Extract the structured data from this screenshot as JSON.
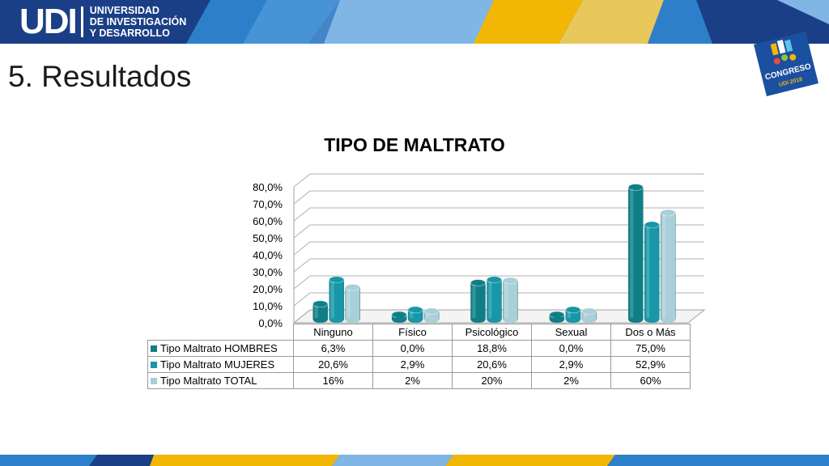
{
  "header": {
    "logo_mark": "UDI",
    "logo_lines": [
      "UNIVERSIDAD",
      "DE INVESTIGACIÓN",
      "Y DESARROLLO"
    ],
    "colors": {
      "navy": "#1b3f86",
      "blue": "#2e7fc9",
      "light_blue": "#7fb6e6",
      "yellow": "#f2b705",
      "white": "#ffffff"
    }
  },
  "page": {
    "title": "5. Resultados"
  },
  "badge": {
    "text": "CONGRESO",
    "subtext": "UDI 2018",
    "icon": "puzzle-logo-icon"
  },
  "chart_data": {
    "type": "bar",
    "title": "TIPO DE MALTRATO",
    "categories": [
      "Ninguno",
      "Físico",
      "Psicológico",
      "Sexual",
      "Dos o Más"
    ],
    "ylim": [
      0,
      80
    ],
    "yticks": [
      "0,0%",
      "10,0%",
      "20,0%",
      "30,0%",
      "40,0%",
      "50,0%",
      "60,0%",
      "70,0%",
      "80,0%"
    ],
    "grid": true,
    "legend": "table-below",
    "series": [
      {
        "name": "Tipo Maltrato HOMBRES",
        "values": [
          6.3,
          0.0,
          18.8,
          0.0,
          75.0
        ],
        "labels": [
          "6,3%",
          "0,0%",
          "18,8%",
          "0,0%",
          "75,0%"
        ],
        "color": "#0f7f87"
      },
      {
        "name": "Tipo Maltrato MUJERES",
        "values": [
          20.6,
          2.9,
          20.6,
          2.9,
          52.9
        ],
        "labels": [
          "20,6%",
          "2,9%",
          "20,6%",
          "2,9%",
          "52,9%"
        ],
        "color": "#1797a8"
      },
      {
        "name": "Tipo Maltrato TOTAL",
        "values": [
          16,
          2,
          20,
          2,
          60
        ],
        "labels": [
          "16%",
          "2%",
          "20%",
          "2%",
          "60%"
        ],
        "color": "#a9cfd9"
      }
    ]
  }
}
